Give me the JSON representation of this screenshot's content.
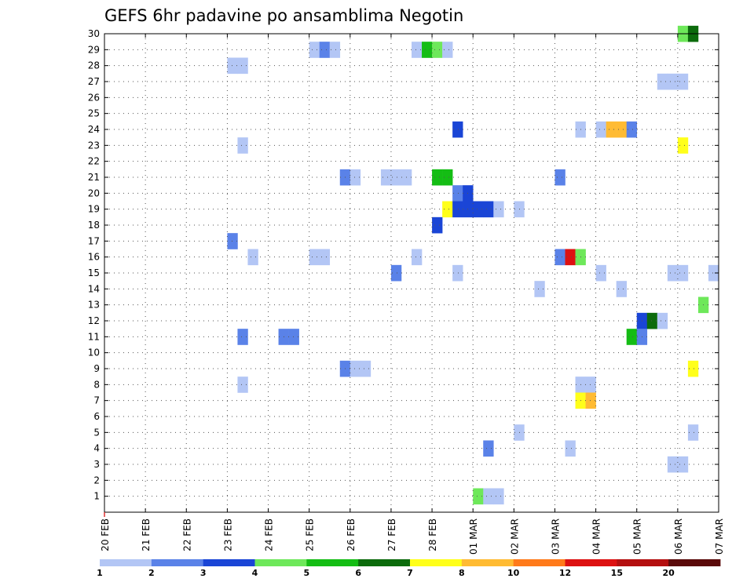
{
  "chart_data": {
    "type": "heatmap",
    "title": "GEFS 6hr padavine po ansamblima Negotin",
    "xlabel": "",
    "ylabel": "",
    "x_tick_labels": [
      "20 FEB",
      "21 FEB",
      "22 FEB",
      "23 FEB",
      "24 FEB",
      "25 FEB",
      "26 FEB",
      "27 FEB",
      "28 FEB",
      "01 MAR",
      "02 MAR",
      "03 MAR",
      "04 MAR",
      "05 MAR",
      "06 MAR",
      "07 MAR"
    ],
    "y_tick_labels": [
      "1",
      "2",
      "3",
      "4",
      "5",
      "6",
      "7",
      "8",
      "9",
      "10",
      "11",
      "12",
      "13",
      "14",
      "15",
      "16",
      "17",
      "18",
      "19",
      "20",
      "21",
      "22",
      "23",
      "24",
      "25",
      "26",
      "27",
      "28",
      "29",
      "30"
    ],
    "xlim_days": [
      0,
      15
    ],
    "ylim": [
      0,
      30
    ],
    "grid": true,
    "colorbar": {
      "placement": "bottom",
      "labels": [
        "1",
        "2",
        "3",
        "4",
        "5",
        "6",
        "7",
        "8",
        "10",
        "12",
        "15",
        "20"
      ],
      "colors": [
        "#b3c6f5",
        "#5a82e8",
        "#1a45d6",
        "#6ee85a",
        "#14bd14",
        "#0c6b0c",
        "#ffff1a",
        "#ffbb33",
        "#ff7a1a",
        "#dd1111",
        "#b40f0f",
        "#5a0a0a"
      ]
    },
    "cells": [
      {
        "day": 14.0,
        "member": 30,
        "c": 3
      },
      {
        "day": 14.25,
        "member": 30,
        "c": 5
      },
      {
        "day": 5.0,
        "member": 29,
        "c": 0
      },
      {
        "day": 5.25,
        "member": 29,
        "c": 1
      },
      {
        "day": 5.5,
        "member": 29,
        "c": 0
      },
      {
        "day": 7.5,
        "member": 29,
        "c": 0
      },
      {
        "day": 7.75,
        "member": 29,
        "c": 4
      },
      {
        "day": 8.0,
        "member": 29,
        "c": 3
      },
      {
        "day": 8.25,
        "member": 29,
        "c": 0
      },
      {
        "day": 3.0,
        "member": 28,
        "c": 0
      },
      {
        "day": 3.25,
        "member": 28,
        "c": 0
      },
      {
        "day": 13.5,
        "member": 27,
        "c": 0
      },
      {
        "day": 13.75,
        "member": 27,
        "c": 0
      },
      {
        "day": 14.0,
        "member": 27,
        "c": 0
      },
      {
        "day": 8.5,
        "member": 24,
        "c": 2
      },
      {
        "day": 11.5,
        "member": 24,
        "c": 0
      },
      {
        "day": 12.0,
        "member": 24,
        "c": 0
      },
      {
        "day": 12.25,
        "member": 24,
        "c": 7
      },
      {
        "day": 12.5,
        "member": 24,
        "c": 7
      },
      {
        "day": 12.75,
        "member": 24,
        "c": 1
      },
      {
        "day": 3.25,
        "member": 23,
        "c": 0
      },
      {
        "day": 14.0,
        "member": 23,
        "c": 6
      },
      {
        "day": 5.75,
        "member": 21,
        "c": 1
      },
      {
        "day": 6.0,
        "member": 21,
        "c": 0
      },
      {
        "day": 6.75,
        "member": 21,
        "c": 0
      },
      {
        "day": 7.0,
        "member": 21,
        "c": 0
      },
      {
        "day": 7.25,
        "member": 21,
        "c": 0
      },
      {
        "day": 8.0,
        "member": 21,
        "c": 4
      },
      {
        "day": 8.25,
        "member": 21,
        "c": 4
      },
      {
        "day": 11.0,
        "member": 21,
        "c": 1
      },
      {
        "day": 8.5,
        "member": 20,
        "c": 1
      },
      {
        "day": 8.75,
        "member": 20,
        "c": 2
      },
      {
        "day": 8.25,
        "member": 19,
        "c": 6
      },
      {
        "day": 8.5,
        "member": 19,
        "c": 2
      },
      {
        "day": 8.75,
        "member": 19,
        "c": 2
      },
      {
        "day": 9.0,
        "member": 19,
        "c": 2
      },
      {
        "day": 9.25,
        "member": 19,
        "c": 2
      },
      {
        "day": 9.5,
        "member": 19,
        "c": 0
      },
      {
        "day": 10.0,
        "member": 19,
        "c": 0
      },
      {
        "day": 8.0,
        "member": 18,
        "c": 2
      },
      {
        "day": 3.0,
        "member": 17,
        "c": 1
      },
      {
        "day": 3.5,
        "member": 16,
        "c": 0
      },
      {
        "day": 5.0,
        "member": 16,
        "c": 0
      },
      {
        "day": 5.25,
        "member": 16,
        "c": 0
      },
      {
        "day": 7.5,
        "member": 16,
        "c": 0
      },
      {
        "day": 11.0,
        "member": 16,
        "c": 1
      },
      {
        "day": 11.25,
        "member": 16,
        "c": 9
      },
      {
        "day": 11.5,
        "member": 16,
        "c": 3
      },
      {
        "day": 7.0,
        "member": 15,
        "c": 1
      },
      {
        "day": 8.5,
        "member": 15,
        "c": 0
      },
      {
        "day": 12.0,
        "member": 15,
        "c": 0
      },
      {
        "day": 13.75,
        "member": 15,
        "c": 0
      },
      {
        "day": 14.0,
        "member": 15,
        "c": 0
      },
      {
        "day": 14.75,
        "member": 15,
        "c": 0
      },
      {
        "day": 10.5,
        "member": 14,
        "c": 0
      },
      {
        "day": 12.5,
        "member": 14,
        "c": 0
      },
      {
        "day": 14.5,
        "member": 13,
        "c": 3
      },
      {
        "day": 13.0,
        "member": 12,
        "c": 2
      },
      {
        "day": 13.25,
        "member": 12,
        "c": 5
      },
      {
        "day": 13.5,
        "member": 12,
        "c": 0
      },
      {
        "day": 3.25,
        "member": 11,
        "c": 1
      },
      {
        "day": 4.25,
        "member": 11,
        "c": 1
      },
      {
        "day": 4.5,
        "member": 11,
        "c": 1
      },
      {
        "day": 12.75,
        "member": 11,
        "c": 4
      },
      {
        "day": 13.0,
        "member": 11,
        "c": 1
      },
      {
        "day": 14.25,
        "member": 9,
        "c": 6
      },
      {
        "day": 5.75,
        "member": 9,
        "c": 1
      },
      {
        "day": 6.0,
        "member": 9,
        "c": 0
      },
      {
        "day": 6.25,
        "member": 9,
        "c": 0
      },
      {
        "day": 3.25,
        "member": 8,
        "c": 0
      },
      {
        "day": 11.5,
        "member": 8,
        "c": 0
      },
      {
        "day": 11.75,
        "member": 8,
        "c": 0
      },
      {
        "day": 11.5,
        "member": 7,
        "c": 6
      },
      {
        "day": 11.75,
        "member": 7,
        "c": 7
      },
      {
        "day": 10.0,
        "member": 5,
        "c": 0
      },
      {
        "day": 14.25,
        "member": 5,
        "c": 0
      },
      {
        "day": 9.25,
        "member": 4,
        "c": 1
      },
      {
        "day": 11.25,
        "member": 4,
        "c": 0
      },
      {
        "day": 13.75,
        "member": 3,
        "c": 0
      },
      {
        "day": 14.0,
        "member": 3,
        "c": 0
      },
      {
        "day": 9.0,
        "member": 1,
        "c": 3
      },
      {
        "day": 9.25,
        "member": 1,
        "c": 0
      },
      {
        "day": 9.5,
        "member": 1,
        "c": 0
      }
    ]
  }
}
